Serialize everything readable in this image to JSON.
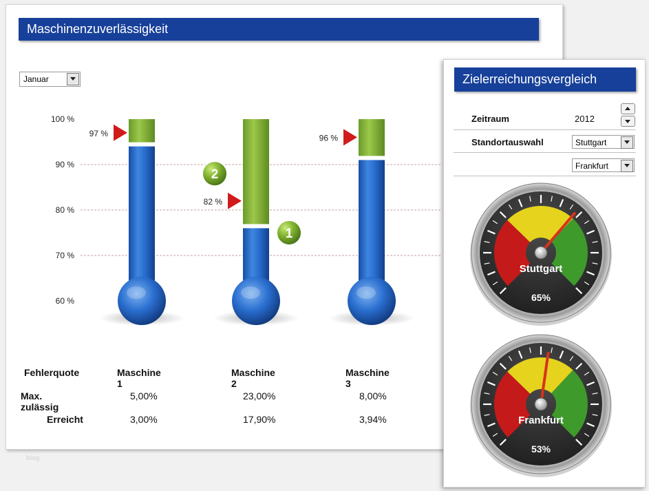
{
  "main_panel": {
    "title": "Maschinenzuverlässigkeit",
    "month_select": {
      "value": "Januar"
    },
    "watermark": "blog"
  },
  "chart_data": {
    "type": "thermometer",
    "title": "Maschinenzuverlässigkeit",
    "y_ticks": [
      "100 %",
      "90 %",
      "80 %",
      "70 %",
      "60 %"
    ],
    "ylim": [
      60,
      100
    ],
    "gridlines": [
      90,
      80,
      70
    ],
    "machines": [
      {
        "name": "Maschine 1",
        "actual": 94,
        "target": 97,
        "target_label": "97 %",
        "callout": ""
      },
      {
        "name": "Maschine 2",
        "actual": 76,
        "target": 82,
        "target_label": "82 %",
        "callout": ""
      },
      {
        "name": "Maschine 3",
        "actual": 91,
        "target": 96,
        "target_label": "96 %",
        "callout": ""
      }
    ],
    "badges": [
      {
        "label": "2",
        "machine": 2,
        "value": 88
      },
      {
        "label": "1",
        "machine": 2,
        "value": 75
      }
    ],
    "colors": {
      "blue": "#1f5fbf",
      "green": "#7aa832",
      "marker": "#d01b1b",
      "grid": "#c8a0a0"
    }
  },
  "table": {
    "headers": [
      "Fehlerquote",
      "Maschine 1",
      "Maschine 2",
      "Maschine 3"
    ],
    "rows": [
      {
        "label": "Max. zulässig",
        "values": [
          "5,00%",
          "23,00%",
          "8,00%"
        ]
      },
      {
        "label": "Erreicht",
        "values": [
          "3,00%",
          "17,90%",
          "3,94%"
        ]
      }
    ]
  },
  "right_panel": {
    "title": "Zielerreichungsvergleich",
    "zeitraum": {
      "label": "Zeitraum",
      "value": "2012"
    },
    "standortauswahl": {
      "label": "Standortauswahl",
      "value1": "Stuttgart",
      "value2": "Frankfurt"
    },
    "gauges": [
      {
        "name": "Stuttgart",
        "value": 65,
        "value_label": "65%"
      },
      {
        "name": "Frankfurt",
        "value": 53,
        "value_label": "53%"
      }
    ]
  }
}
